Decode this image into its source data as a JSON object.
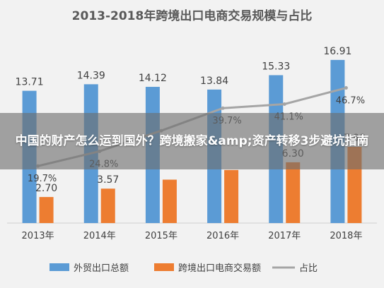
{
  "chart_data": {
    "type": "bar",
    "title": "2013-2018年跨境出口电商交易规模与占比",
    "categories": [
      "2013年",
      "2014年",
      "2015年",
      "2016年",
      "2017年",
      "2018年"
    ],
    "series": [
      {
        "name": "外贸出口总额",
        "kind": "bar",
        "color": "#5b9bd5",
        "values": [
          13.71,
          14.39,
          14.12,
          13.84,
          15.33,
          16.91
        ],
        "labels": [
          "13.71",
          "14.39",
          "14.12",
          "13.84",
          "15.33",
          "16.91"
        ]
      },
      {
        "name": "跨境出口电商交易额",
        "kind": "bar",
        "color": "#ed7d31",
        "values": [
          2.7,
          3.57,
          4.5,
          5.5,
          6.3,
          7.9
        ],
        "labels": [
          "2.70",
          "3.57",
          "",
          "",
          "6.30",
          "7.90"
        ]
      },
      {
        "name": "占比",
        "kind": "line",
        "color": "#a5a5a5",
        "values": [
          19.7,
          24.8,
          31.9,
          39.7,
          41.1,
          46.7
        ],
        "labels": [
          "19.7%",
          "24.8%",
          "",
          "39.7%",
          "41.1%",
          "46.7%"
        ]
      }
    ],
    "ylim": [
      0,
      18
    ],
    "y2lim": [
      0,
      60
    ],
    "grid": false,
    "legend_position": "bottom"
  },
  "overlay": {
    "text": "中国的财产怎么运到国外？跨境搬家&amp;资产转移3步避坑指南"
  }
}
